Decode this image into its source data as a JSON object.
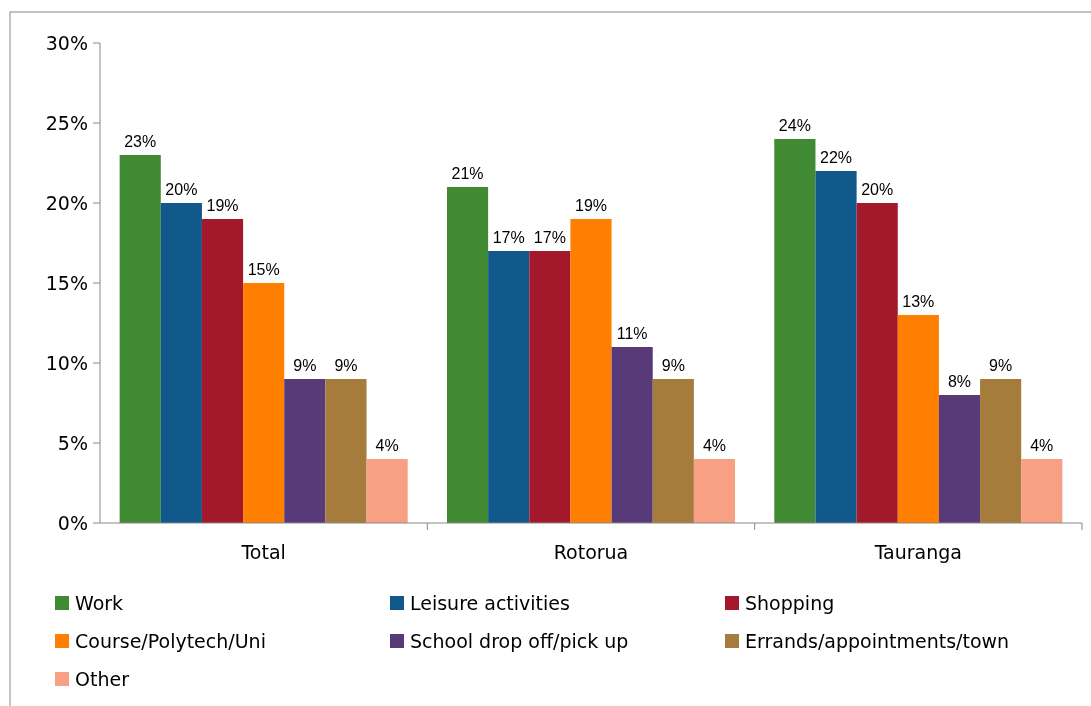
{
  "chart_data": {
    "type": "bar",
    "categories": [
      "Total",
      "Rotorua",
      "Tauranga"
    ],
    "series": [
      {
        "name": "Work",
        "color": "#3f8a32",
        "values": [
          23,
          21,
          24
        ],
        "value_labels": [
          "23%",
          "21%",
          "24%"
        ]
      },
      {
        "name": "Leisure activities",
        "color": "#11598a",
        "values": [
          20,
          17,
          22
        ],
        "value_labels": [
          "20%",
          "17%",
          "22%"
        ]
      },
      {
        "name": "Shopping",
        "color": "#a3192b",
        "values": [
          19,
          17,
          20
        ],
        "value_labels": [
          "19%",
          "17%",
          "20%"
        ]
      },
      {
        "name": "Course/Polytech/Uni",
        "color": "#ff8000",
        "values": [
          15,
          19,
          13
        ],
        "value_labels": [
          "15%",
          "19%",
          "13%"
        ]
      },
      {
        "name": "School drop off/pick up",
        "color": "#583a78",
        "values": [
          9,
          11,
          8
        ],
        "value_labels": [
          "9%",
          "11%",
          "8%"
        ]
      },
      {
        "name": "Errands/appointments/town",
        "color": "#a67c3c",
        "values": [
          9,
          9,
          9
        ],
        "value_labels": [
          "9%",
          "9%",
          "9%"
        ]
      },
      {
        "name": "Other",
        "color": "#f7a084",
        "values": [
          4,
          4,
          4
        ],
        "value_labels": [
          "4%",
          "4%",
          "4%"
        ]
      }
    ],
    "ylim": [
      0,
      30
    ],
    "yticks": [
      {
        "value": 0,
        "label": "0%"
      },
      {
        "value": 5,
        "label": "5%"
      },
      {
        "value": 10,
        "label": "10%"
      },
      {
        "value": 15,
        "label": "15%"
      },
      {
        "value": 20,
        "label": "20%"
      },
      {
        "value": 25,
        "label": "25%"
      },
      {
        "value": 30,
        "label": "30%"
      }
    ],
    "legend": "bottom",
    "grid": false
  }
}
